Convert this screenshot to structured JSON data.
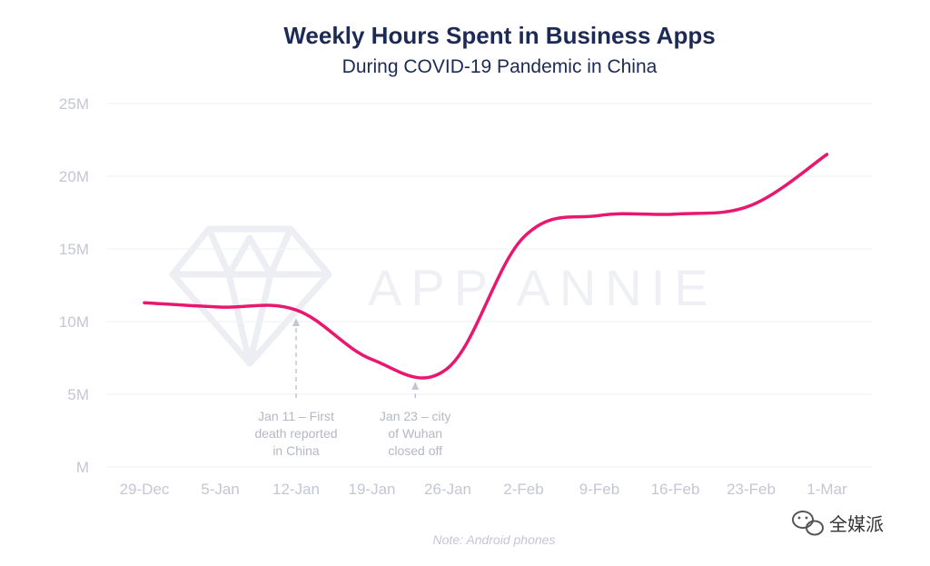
{
  "chart_data": {
    "type": "line",
    "title": "Weekly Hours Spent in Business Apps",
    "subtitle": "During COVID-19 Pandemic in China",
    "xlabel": "",
    "ylabel": "",
    "categories": [
      "29-Dec",
      "5-Jan",
      "12-Jan",
      "19-Jan",
      "26-Jan",
      "2-Feb",
      "9-Feb",
      "16-Feb",
      "23-Feb",
      "1-Mar"
    ],
    "y_ticks": [
      {
        "value": 0,
        "label": "M"
      },
      {
        "value": 5,
        "label": "5M"
      },
      {
        "value": 10,
        "label": "10M"
      },
      {
        "value": 15,
        "label": "15M"
      },
      {
        "value": 20,
        "label": "20M"
      },
      {
        "value": 25,
        "label": "25M"
      }
    ],
    "ylim": [
      0,
      25
    ],
    "grid": true,
    "series": [
      {
        "color": "#e8176f",
        "points": [
          {
            "x": "29-Dec",
            "y": 11.3
          },
          {
            "x": "5-Jan",
            "y": 11.0
          },
          {
            "x": "12-Jan",
            "y": 10.8
          },
          {
            "x": "19-Jan",
            "y": 7.4
          },
          {
            "x": "26-Jan",
            "y": 6.8
          },
          {
            "x": "2-Feb",
            "y": 15.8
          },
          {
            "x": "9-Feb",
            "y": 17.3
          },
          {
            "x": "16-Feb",
            "y": 17.4
          },
          {
            "x": "23-Feb",
            "y": 18.0
          },
          {
            "x": "1-Mar",
            "y": 21.5
          }
        ]
      }
    ],
    "annotations": [
      {
        "x": "12-Jan",
        "lines": [
          "Jan 11 – First",
          "death reported",
          "in China"
        ]
      },
      {
        "x": "23-Jan",
        "lines": [
          "Jan 23 – city",
          "of Wuhan",
          "closed off"
        ]
      }
    ],
    "note": "Note: Android phones"
  },
  "watermark": {
    "text": "APP ANNIE",
    "icon": "diamond-icon"
  },
  "brand": {
    "icon": "wechat-icon",
    "label": "全媒派"
  }
}
